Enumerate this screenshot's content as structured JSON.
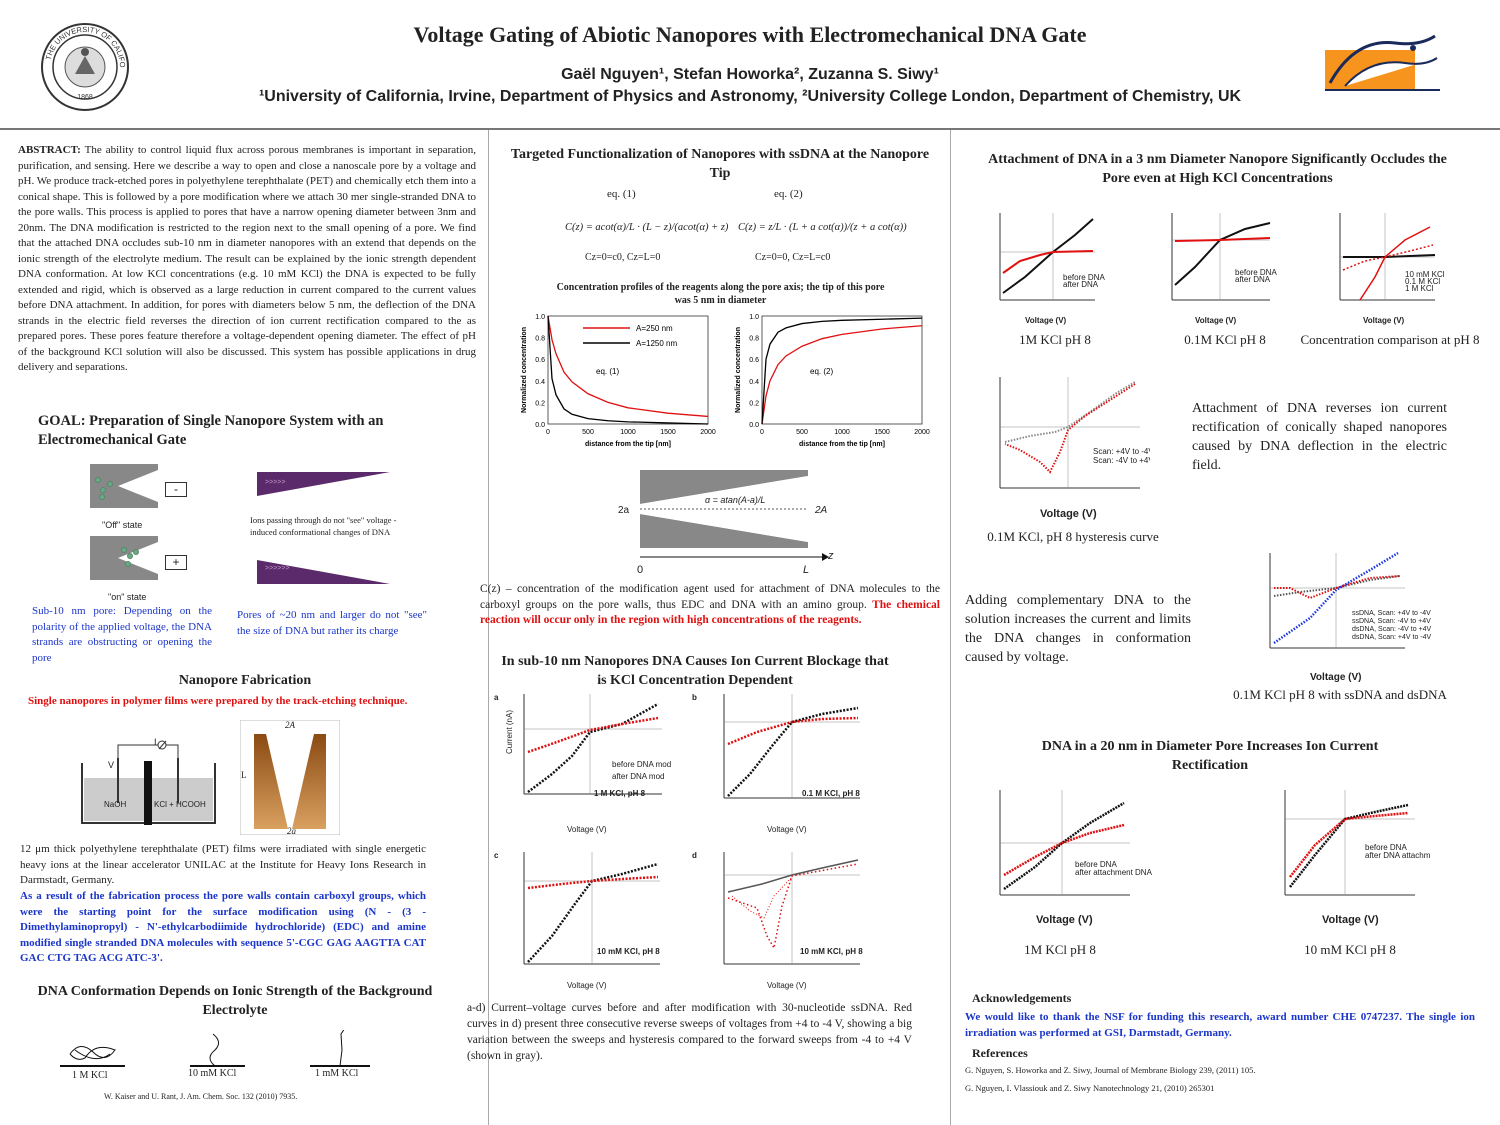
{
  "header": {
    "title": "Voltage Gating of Abiotic Nanopores with Electromechanical DNA Gate",
    "authors": "Gaël Nguyen¹, Stefan Howorka², Zuzanna S. Siwy¹",
    "affiliation": "¹University of California, Irvine, Department of Physics and Astronomy, ²University College London, Department of Chemistry, UK",
    "seal_text": "THE UNIVERSITY OF CALIFORNIA 1868"
  },
  "abstract": {
    "label": "ABSTRACT:",
    "text": "The ability to control liquid flux across porous membranes is important in separation, purification, and sensing. Here we describe a way to open and close a nanoscale pore by a voltage and pH. We produce track-etched pores in polyethylene terephthalate (PET) and chemically etch them into a conical shape. This is followed by a pore modification where we attach 30 mer single-stranded DNA to the pore walls. This process is applied to pores that have a narrow opening diameter between 3nm and 20nm. The DNA modification is restricted to the region next to the small opening of a pore. We find that the attached DNA occludes sub-10 nm in diameter nanopores with an extend that depends on the ionic strength of the electrolyte medium. The result can be explained by the ionic strength dependent DNA conformation. At low KCl concentrations (e.g. 10 mM KCl) the DNA is expected to be fully extended and rigid, which is observed as a large reduction in current compared to the current values before DNA attachment. In addition, for pores with diameters below 5 nm, the deflection of the DNA strands in the electric field reverses the direction of ion current rectification compared to the as prepared pores. These pores feature therefore a voltage-dependent opening diameter. The effect of pH of the background KCl solution will also be discussed. This system has possible applications in drug delivery and separations."
  },
  "goal": {
    "heading": "GOAL: Preparation of Single Nanopore System with an Electromechanical Gate",
    "off_label": "\"Off\" state",
    "on_label": "\"on\" state",
    "minus": "-",
    "plus": "+",
    "ions_text": "Ions passing through do not \"see\" voltage - induced conformational changes of DNA",
    "left_caption": "Sub-10 nm pore: Depending on the polarity of the applied voltage, the DNA strands are obstructing or opening the pore",
    "right_caption": "Pores of ~20 nm and larger do not \"see\" the size of DNA but rather its charge"
  },
  "fabrication": {
    "heading": "Nanopore Fabrication",
    "red_text": "Single nanopores in polymer films were prepared by the track-etching technique.",
    "cell_labels": {
      "v": "V",
      "i": "I",
      "left": "NaOH",
      "right": "KCl + HCOOH",
      "top": "2A",
      "side": "L",
      "bottom": "2a"
    },
    "text1": "12 μm thick polyethylene terephthalate (PET) films were irradiated with single energetic heavy ions at the linear accelerator UNILAC at the Institute for Heavy Ions Research in Darmstadt, Germany.",
    "blue_text": "As a result of the fabrication process the pore walls contain carboxyl groups, which were the starting point for the surface modification using (N - (3 - Dimethylaminopropyl) - N'-ethylcarbodiimide hydrochloride) (EDC) and amine modified single stranded DNA molecules with sequence 5'-CGC GAG AAGTTA CAT GAC CTG TAG ACG ATC-3'."
  },
  "conformation": {
    "heading": "DNA Conformation Depends on Ionic Strength of the Background Electrolyte",
    "labels": [
      "1 M KCl",
      "10 mM KCl",
      "1 mM KCl"
    ],
    "ref": "W. Kaiser and U. Rant, J. Am. Chem. Soc. 132 (2010) 7935."
  },
  "functionalization": {
    "heading": "Targeted Functionalization of Nanopores with ssDNA at the Nanopore Tip",
    "eq1_label": "eq. (1)",
    "eq2_label": "eq. (2)",
    "eq1": "C(z) = acot(α)/L · (L − z)/(acot(α) + z)",
    "eq2": "C(z) = z/L · (L + a cot(α))/(z + a cot(α))",
    "bc1": "Cz=0=c0, Cz=L=0",
    "bc2": "Cz=0=0, Cz=L=c0",
    "conc_heading": "Concentration profiles of the reagents along the pore axis; the tip of this pore was 5 nm in diameter",
    "geom": {
      "left": "2a",
      "right": "2A",
      "angle": "α = atan(A-a)/L",
      "zero": "0",
      "L": "L",
      "z": "z"
    },
    "caption_black": "C(z) – concentration of the modification agent used for attachment of DNA molecules to the carboxyl groups on the pore walls, thus EDC and DNA with an amino group.",
    "caption_red": "The chemical reaction will occur only in the region with high concentrations of the reagents."
  },
  "blockage": {
    "heading": "In sub-10 nm Nanopores DNA Causes Ion Current Blockage that is KCl Concentration Dependent",
    "caption": "a-d) Current–voltage curves before and after modification with 30-nucleotide ssDNA. Red curves in d) present three consecutive reverse sweeps of voltages from +4 to -4 V, showing a big variation between the sweeps and hysteresis compared to the forward sweeps from -4 to +4 V (shown in gray)."
  },
  "attachment": {
    "heading": "Attachment of DNA in a 3 nm Diameter Nanopore Significantly Occludes the Pore even at High KCl Concentrations",
    "captions": [
      "1M KCl pH 8",
      "0.1M KCl pH 8",
      "Concentration comparison at pH 8"
    ],
    "hyst_caption": "0.1M KCl, pH 8 hysteresis curve",
    "rect_text": "Attachment of DNA reverses ion current rectification of conically shaped nanopores caused by DNA deflection in the electric field.",
    "comp_text": "Adding complementary DNA to the solution increases the current and limits the DNA changes in conformation caused by voltage.",
    "ds_caption": "0.1M KCl pH 8 with ssDNA and dsDNA"
  },
  "rectification": {
    "heading": "DNA in a 20 nm in Diameter Pore Increases Ion Current Rectification",
    "captions": [
      "1M KCl pH 8",
      "10 mM KCl pH 8"
    ]
  },
  "ack": {
    "heading": "Acknowledgements",
    "text": "We would like to thank the NSF for funding this research, award number CHE 0747237. The single ion irradiation was performed at GSI, Darmstadt, Germany."
  },
  "refs": {
    "heading": "References",
    "items": [
      "G. Nguyen, S. Howorka and Z. Siwy, Journal of Membrane Biology 239, (2011) 105.",
      "G. Nguyen, I. Vlassiouk and Z. Siwy Nanotechnology 21, (2010) 265301"
    ]
  },
  "chart_data": [
    {
      "id": "conc1",
      "type": "line",
      "xlabel": "distance from the tip [nm]",
      "ylabel": "Normalized concentration",
      "xlim": [
        0,
        2000
      ],
      "ylim": [
        0,
        1.0
      ],
      "xticks": [
        "0",
        "500",
        "1000",
        "1500",
        "2000"
      ],
      "yticks": [
        "0.0",
        "0.2",
        "0.4",
        "0.6",
        "0.8",
        "1.0"
      ],
      "annotation": "eq. (1)",
      "legend": [
        "A=250 nm",
        "A=1250 nm"
      ],
      "series": [
        {
          "name": "A=250 nm",
          "color": "#e01010",
          "x": [
            0,
            50,
            100,
            200,
            300,
            500,
            750,
            1000,
            1500,
            2000
          ],
          "y": [
            1.0,
            0.78,
            0.65,
            0.48,
            0.39,
            0.28,
            0.2,
            0.15,
            0.1,
            0.07
          ]
        },
        {
          "name": "A=1250 nm",
          "color": "#000000",
          "x": [
            0,
            50,
            100,
            200,
            300,
            500,
            750,
            1000,
            1500,
            2000
          ],
          "y": [
            1.0,
            0.42,
            0.27,
            0.14,
            0.09,
            0.05,
            0.03,
            0.02,
            0.01,
            0.0
          ]
        }
      ]
    },
    {
      "id": "conc2",
      "type": "line",
      "xlabel": "distance from the tip [nm]",
      "ylabel": "Normalized concentration",
      "xlim": [
        0,
        2000
      ],
      "ylim": [
        0,
        1.0
      ],
      "xticks": [
        "0",
        "500",
        "1000",
        "1500",
        "2000"
      ],
      "yticks": [
        "0.0",
        "0.2",
        "0.4",
        "0.6",
        "0.8",
        "1.0"
      ],
      "annotation": "eq. (2)",
      "series": [
        {
          "color": "#e01010",
          "x": [
            0,
            50,
            100,
            200,
            300,
            500,
            750,
            1000,
            1500,
            2000
          ],
          "y": [
            0.0,
            0.26,
            0.4,
            0.55,
            0.63,
            0.72,
            0.79,
            0.83,
            0.88,
            0.91
          ]
        },
        {
          "color": "#000000",
          "x": [
            0,
            50,
            100,
            200,
            300,
            500,
            750,
            1000,
            1500,
            2000
          ],
          "y": [
            0.0,
            0.6,
            0.74,
            0.85,
            0.89,
            0.93,
            0.95,
            0.96,
            0.97,
            0.98
          ]
        }
      ]
    }
  ]
}
